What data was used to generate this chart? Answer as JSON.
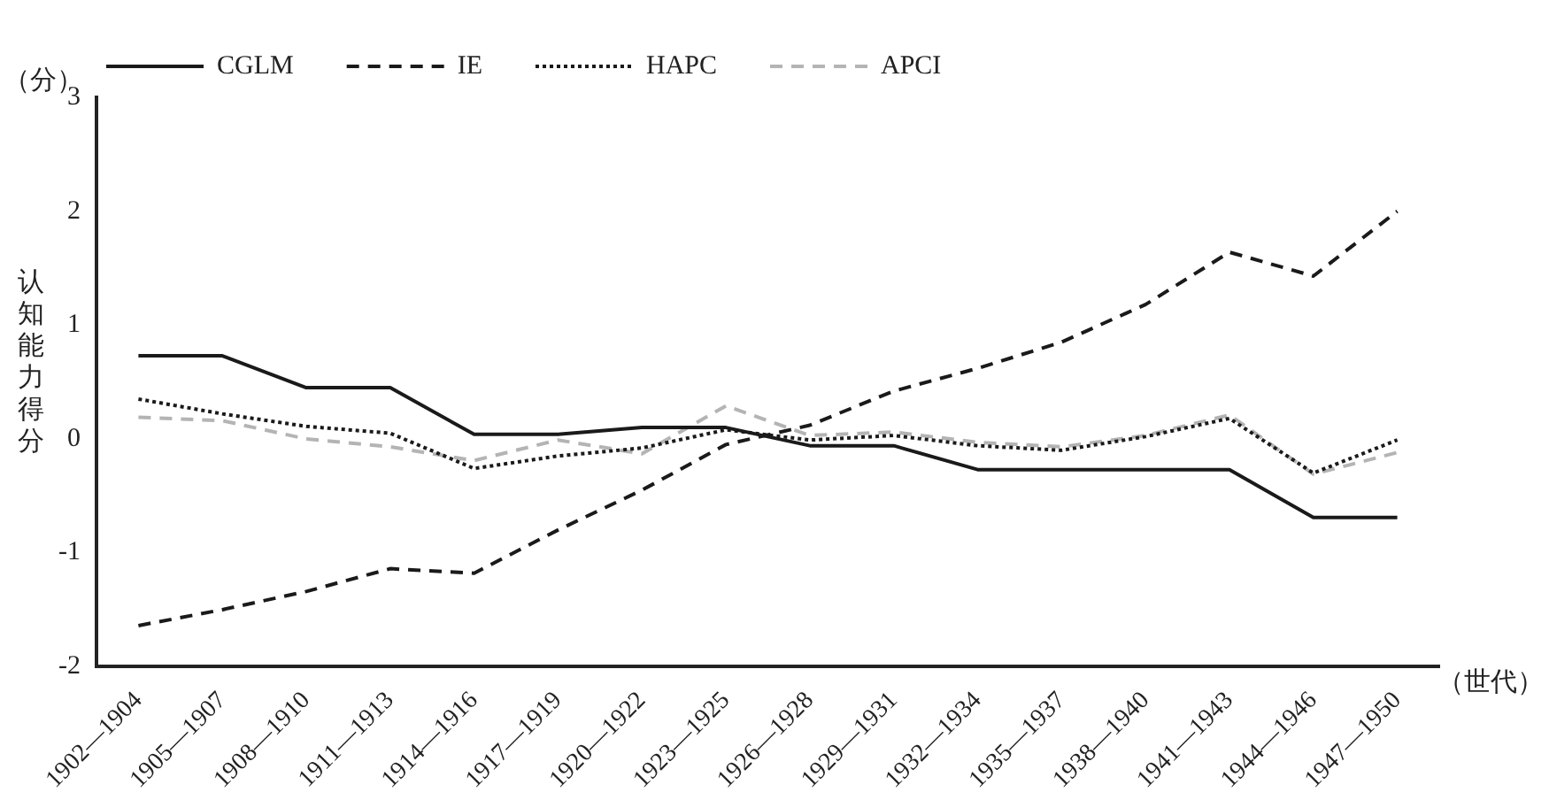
{
  "chart_data": {
    "type": "line",
    "xlabel": "（世代）",
    "ylabel": "认知能力得分",
    "annotations": [
      "（分）"
    ],
    "categories": [
      "1902—1904",
      "1905—1907",
      "1908—1910",
      "1911—1913",
      "1914—1916",
      "1917—1919",
      "1920—1922",
      "1923—1925",
      "1926—1928",
      "1929—1931",
      "1932—1934",
      "1935—1937",
      "1938—1940",
      "1941—1943",
      "1944—1946",
      "1947—1950"
    ],
    "ylim": [
      -2,
      3
    ],
    "yticks": [
      -2,
      -1,
      0,
      1,
      2,
      3
    ],
    "grid": false,
    "legend": "top",
    "marker": "none",
    "series": [
      {
        "name": "CGLM",
        "color": "#1a1a1a",
        "line_style": "solid",
        "values": [
          0.73,
          0.73,
          0.45,
          0.45,
          0.04,
          0.04,
          0.1,
          0.1,
          -0.06,
          -0.06,
          -0.27,
          -0.27,
          -0.27,
          -0.27,
          -0.69,
          -0.69
        ]
      },
      {
        "name": "IE",
        "color": "#1a1a1a",
        "line_style": "dashed",
        "values": [
          -1.64,
          -1.5,
          -1.34,
          -1.14,
          -1.18,
          -0.8,
          -0.45,
          -0.05,
          0.12,
          0.42,
          0.62,
          0.85,
          1.18,
          1.64,
          1.43,
          2.0
        ]
      },
      {
        "name": "HAPC",
        "color": "#1a1a1a",
        "line_style": "dotted",
        "values": [
          0.35,
          0.22,
          0.11,
          0.05,
          -0.26,
          -0.15,
          -0.08,
          0.08,
          -0.01,
          0.03,
          -0.06,
          -0.1,
          0.02,
          0.18,
          -0.3,
          -0.01
        ]
      },
      {
        "name": "APCI",
        "color": "#b4b4b4",
        "line_style": "dashed",
        "values": [
          0.19,
          0.16,
          0.0,
          -0.07,
          -0.19,
          -0.01,
          -0.13,
          0.29,
          0.03,
          0.06,
          -0.03,
          -0.07,
          0.03,
          0.21,
          -0.31,
          -0.12
        ]
      }
    ]
  }
}
